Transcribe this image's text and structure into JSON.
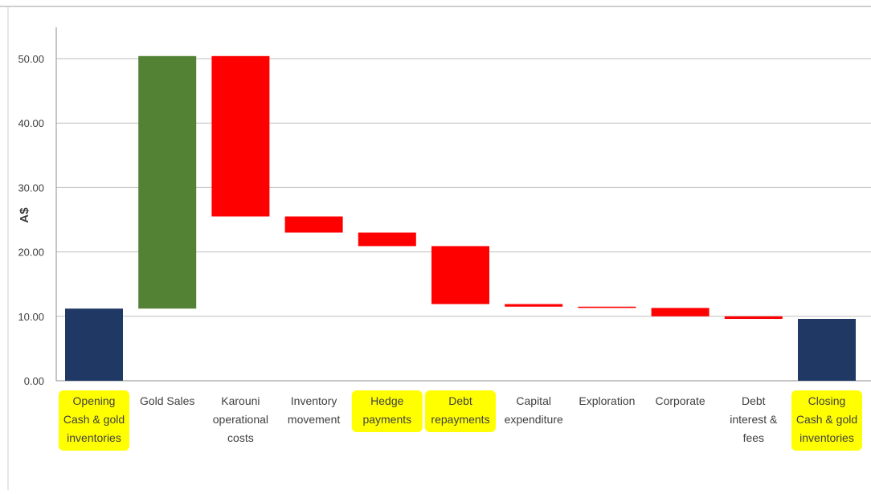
{
  "chart_data": {
    "type": "waterfall",
    "ylabel": "A$",
    "ylim": [
      0,
      55
    ],
    "yticks": [
      "0.00",
      "10.00",
      "20.00",
      "30.00",
      "40.00",
      "50.00"
    ],
    "grid": true,
    "categories": [
      [
        "Opening",
        "Cash & gold",
        "inventories"
      ],
      [
        "Gold Sales"
      ],
      [
        "Karouni",
        "operational",
        "costs"
      ],
      [
        "Inventory",
        "movement"
      ],
      [
        "Hedge",
        "payments"
      ],
      [
        "Debt",
        "repayments"
      ],
      [
        "Capital",
        "expenditure"
      ],
      [
        "Exploration"
      ],
      [
        "Corporate"
      ],
      [
        "Debt",
        "interest &",
        "fees"
      ],
      [
        "Closing",
        "Cash & gold",
        "inventories"
      ]
    ],
    "highlighted": [
      true,
      false,
      false,
      false,
      true,
      true,
      false,
      false,
      false,
      false,
      true
    ],
    "bars": [
      {
        "base": 0,
        "top": 11.2,
        "kind": "total"
      },
      {
        "base": 11.2,
        "top": 50.4,
        "kind": "increase"
      },
      {
        "base": 25.5,
        "top": 50.4,
        "kind": "decrease"
      },
      {
        "base": 23.0,
        "top": 25.5,
        "kind": "decrease"
      },
      {
        "base": 20.9,
        "top": 23.0,
        "kind": "decrease"
      },
      {
        "base": 11.9,
        "top": 20.9,
        "kind": "decrease"
      },
      {
        "base": 11.5,
        "top": 11.9,
        "kind": "decrease"
      },
      {
        "base": 11.3,
        "top": 11.5,
        "kind": "decrease"
      },
      {
        "base": 10.0,
        "top": 11.3,
        "kind": "decrease"
      },
      {
        "base": 9.6,
        "top": 10.0,
        "kind": "decrease"
      },
      {
        "base": 0,
        "top": 9.6,
        "kind": "total"
      }
    ],
    "colors": {
      "total": "#1f3864",
      "increase": "#548235",
      "decrease": "#ff0000",
      "highlight": "#ffff00",
      "grid": "#bfbfbf",
      "text": "#404040"
    }
  }
}
